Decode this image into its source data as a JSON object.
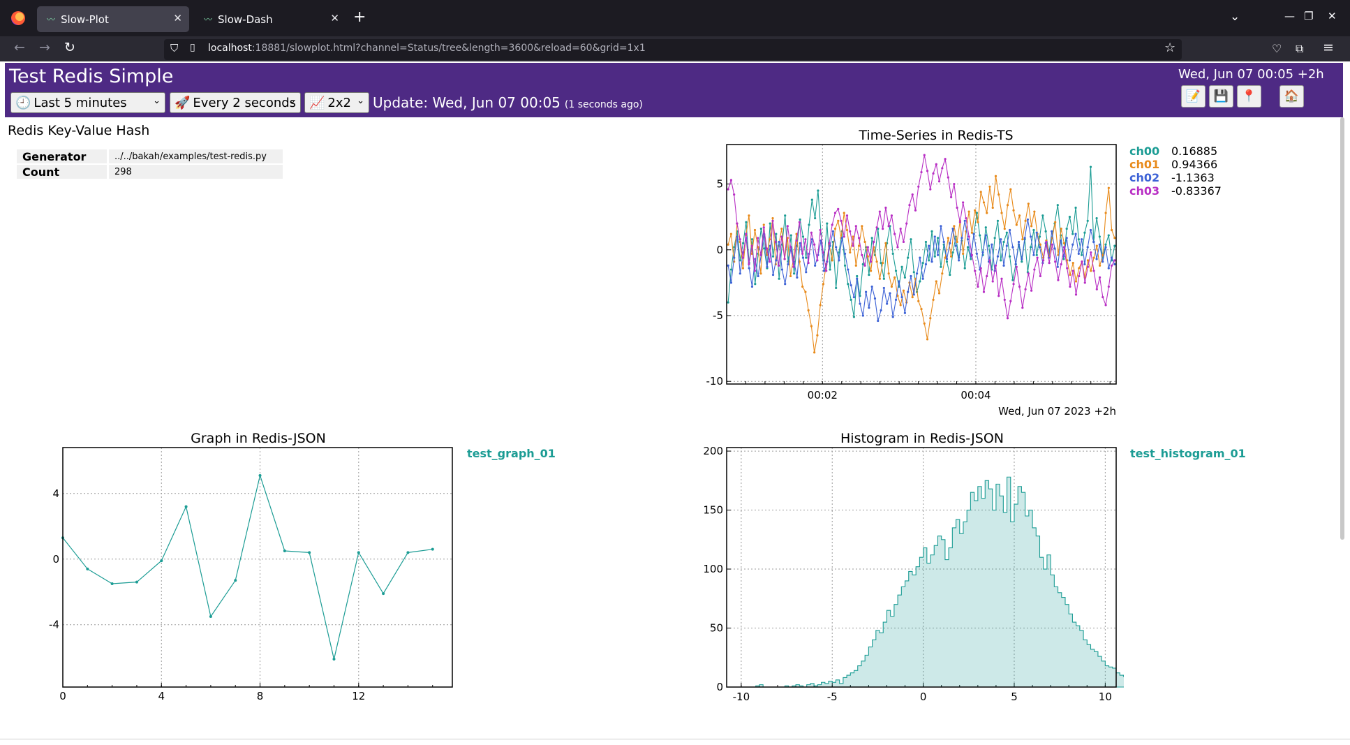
{
  "browser": {
    "tabs": [
      {
        "label": "Slow-Plot",
        "icon": "slowdash-icon"
      },
      {
        "label": "Slow-Dash",
        "icon": "slowdash-icon"
      }
    ],
    "url_host": "localhost",
    "url_rest": ":18881/slowplot.html?channel=Status/tree&length=3600&reload=60&grid=1x1"
  },
  "header": {
    "title": "Test Redis Simple",
    "clock": "Wed, Jun 07 00:05 +2h",
    "time_range": "Last 5 minutes",
    "reload": "Every 2 seconds",
    "grid": "2x2",
    "update": "Update: Wed, Jun 07 00:05",
    "update_ago": "(1 seconds ago)",
    "colors": {
      "header_bg": "#4e2a84"
    }
  },
  "kv_panel": {
    "title": "Redis Key-Value Hash",
    "rows": [
      {
        "key": "Generator",
        "value": "../../bakah/examples/test-redis.py"
      },
      {
        "key": "Count",
        "value": "298"
      }
    ]
  },
  "chart_data": [
    {
      "id": "ts",
      "type": "line",
      "title": "Time-Series in Redis-TS",
      "xlabel": "Wed, Jun 07 2023 +2h",
      "x_ticks": [
        "00:02",
        "00:04"
      ],
      "x_range_min": [
        0.75,
        5.83
      ],
      "ylim": [
        -10.2,
        8.0
      ],
      "y_ticks": [
        5,
        0,
        -5,
        -10
      ],
      "grid": true,
      "legend": "right",
      "series": [
        {
          "name": "ch00",
          "value_label": "0.16885",
          "color": "#1b9c94",
          "values": [
            -4.0,
            -1.5,
            0.2,
            1.4,
            -0.8,
            0.5,
            2.1,
            -1.0,
            0.8,
            -2.6,
            -0.3,
            1.6,
            0.1,
            -1.4,
            2.0,
            -0.5,
            1.2,
            -2.2,
            0.4,
            2.6,
            -0.9,
            1.1,
            -1.8,
            0.3,
            2.3,
            1.0,
            -0.6,
            1.9,
            3.8,
            2.4,
            4.5,
            1.2,
            -0.8,
            2.0,
            -1.5,
            0.6,
            -2.9,
            -0.2,
            1.4,
            -1.2,
            -2.6,
            -3.8,
            -5.1,
            -2.0,
            -3.5,
            -1.1,
            0.2,
            -1.9,
            0.9,
            -0.4,
            1.6,
            -1.0,
            -2.2,
            0.5,
            1.8,
            -0.3,
            -1.6,
            -2.8,
            -1.3,
            -2.1,
            -0.6,
            0.8,
            -1.7,
            -3.2,
            -2.4,
            -1.0,
            0.6,
            -0.8,
            1.4,
            -0.5,
            0.9,
            -1.3,
            0.4,
            -0.9,
            -1.9,
            -0.2,
            1.0,
            -0.6,
            0.7,
            -1.4,
            0.2,
            -0.7,
            1.2,
            2.8,
            1.1,
            -0.4,
            1.7,
            0.3,
            -1.5,
            0.9,
            2.2,
            -0.8,
            0.6,
            1.3,
            -0.5,
            -2.3,
            -1.1,
            0.4,
            -0.9,
            0.8,
            -1.7,
            0.2,
            1.5,
            -0.4,
            1.0,
            2.6,
            1.4,
            -0.2,
            0.9,
            2.0,
            3.4,
            1.1,
            -0.7,
            1.6,
            2.5,
            1.2,
            3.2,
            0.8,
            -0.4,
            1.3,
            2.2,
            6.3,
            0.6,
            2.4,
            1.0,
            -0.6,
            0.4,
            1.1,
            -0.8,
            0.3
          ]
        },
        {
          "name": "ch01",
          "value_label": "0.94366",
          "color": "#e88a1a",
          "values": [
            0.4,
            1.2,
            -0.9,
            2.0,
            0.6,
            -1.4,
            1.1,
            2.6,
            -0.3,
            1.5,
            0.2,
            -1.8,
            1.9,
            -0.4,
            0.8,
            2.4,
            -1.1,
            0.3,
            1.6,
            -0.7,
            0.9,
            -2.0,
            -0.6,
            1.2,
            -0.9,
            -2.8,
            -3.2,
            -4.6,
            -5.8,
            -7.8,
            -6.5,
            -4.2,
            -2.6,
            -1.1,
            0.4,
            -0.8,
            1.6,
            2.2,
            0.9,
            2.8,
            1.5,
            -0.2,
            1.0,
            -1.2,
            0.3,
            1.8,
            0.6,
            -0.5,
            -1.6,
            0.2,
            -0.9,
            -2.2,
            -1.0,
            0.5,
            -1.8,
            -2.8,
            -2.1,
            -3.5,
            -4.2,
            -3.1,
            -4.0,
            -2.5,
            -3.6,
            -2.2,
            -3.9,
            -4.5,
            -5.6,
            -6.8,
            -5.2,
            -3.8,
            -2.4,
            -3.3,
            -1.8,
            -0.6,
            0.9,
            -0.5,
            1.8,
            0.6,
            2.2,
            -0.3,
            1.4,
            2.9,
            1.3,
            3.0,
            2.1,
            4.4,
            3.6,
            2.8,
            4.8,
            3.2,
            5.6,
            4.2,
            2.8,
            1.6,
            3.4,
            4.6,
            3.0,
            1.9,
            2.6,
            0.8,
            2.2,
            3.5,
            1.8,
            2.9,
            1.2,
            0.4,
            -0.6,
            0.7,
            -0.5,
            0.9,
            2.1,
            -0.4,
            1.6,
            0.5,
            -0.8,
            -1.9,
            -1.0,
            -2.4,
            -1.4,
            -0.9,
            -2.1,
            -0.8,
            -1.6,
            -0.6,
            0.3,
            -1.2,
            -0.4,
            2.8,
            4.7,
            1.5,
            0.9
          ]
        },
        {
          "name": "ch02",
          "value_label": "-1.1363",
          "color": "#3d62d6",
          "values": [
            -1.2,
            -2.5,
            -0.6,
            1.0,
            -1.8,
            -0.2,
            0.9,
            -1.4,
            -2.8,
            -0.7,
            -2.0,
            -0.4,
            1.2,
            -1.3,
            0.3,
            -1.9,
            -0.8,
            0.6,
            -1.5,
            -2.6,
            -1.1,
            0.2,
            -0.9,
            -2.1,
            0.5,
            -0.6,
            -1.7,
            -0.3,
            0.8,
            -1.2,
            -0.4,
            0.7,
            -1.6,
            -0.9,
            0.3,
            1.4,
            0.2,
            -0.8,
            0.9,
            -0.3,
            -1.5,
            -2.7,
            -3.6,
            -2.2,
            -4.1,
            -5.0,
            -3.2,
            -4.4,
            -2.8,
            -3.7,
            -5.4,
            -4.6,
            -2.9,
            -4.1,
            -3.3,
            -5.1,
            -3.8,
            -2.4,
            -3.6,
            -4.8,
            -3.2,
            -2.0,
            -3.4,
            -1.8,
            -0.6,
            -2.2,
            -1.1,
            0.3,
            -0.9,
            1.0,
            -0.4,
            1.8,
            0.6,
            -0.7,
            0.5,
            1.6,
            0.3,
            -0.8,
            0.9,
            2.2,
            0.8,
            -0.5,
            1.2,
            -0.3,
            -1.5,
            -0.2,
            1.1,
            -0.9,
            0.4,
            -1.6,
            -0.5,
            0.8,
            -1.2,
            0.3,
            1.5,
            0.2,
            -1.1,
            0.6,
            -0.7,
            0.9,
            2.3,
            1.0,
            -0.4,
            1.3,
            0.2,
            -1.0,
            0.5,
            -0.6,
            1.4,
            0.1,
            -1.3,
            0.7,
            -0.5,
            0.9,
            -0.8,
            0.4,
            1.2,
            -0.3,
            0.8,
            -1.1,
            0.2,
            1.5,
            0.6,
            -0.7,
            0.4,
            -0.9,
            0.2,
            -1.4,
            -0.6,
            -1.1
          ]
        },
        {
          "name": "ch03",
          "value_label": "-0.83367",
          "color": "#b82ec4",
          "values": [
            4.6,
            5.3,
            4.2,
            2.0,
            0.8,
            -0.6,
            1.2,
            -1.1,
            0.3,
            -1.6,
            0.9,
            -0.4,
            1.7,
            0.1,
            -0.9,
            2.2,
            0.6,
            -1.2,
            1.0,
            -0.7,
            1.8,
            0.2,
            -1.3,
            0.7,
            2.1,
            -0.3,
            0.8,
            -1.0,
            1.3,
            0.4,
            -0.8,
            1.5,
            -0.2,
            -1.6,
            0.5,
            1.9,
            2.8,
            3.1,
            2.2,
            1.0,
            2.6,
            1.4,
            0.3,
            1.8,
            0.9,
            -0.4,
            -1.2,
            0.2,
            -0.9,
            0.6,
            1.7,
            2.9,
            1.6,
            3.2,
            1.8,
            2.6,
            1.2,
            0.2,
            1.6,
            0.6,
            2.0,
            3.4,
            4.2,
            3.0,
            4.8,
            5.9,
            7.2,
            6.0,
            4.6,
            5.8,
            6.5,
            5.2,
            6.2,
            6.9,
            5.5,
            4.0,
            5.0,
            3.2,
            2.1,
            3.6,
            2.4,
            1.0,
            -0.4,
            -1.6,
            -2.8,
            -1.4,
            -3.2,
            -2.0,
            -0.8,
            -2.4,
            -1.2,
            -3.5,
            -2.2,
            -3.8,
            -5.2,
            -3.9,
            -2.6,
            -1.3,
            -2.8,
            -4.4,
            -3.0,
            -1.8,
            -3.1,
            -1.5,
            -0.6,
            -2.0,
            -0.8,
            0.6,
            -1.0,
            0.4,
            -0.9,
            -2.3,
            -1.1,
            0.2,
            -1.4,
            -2.8,
            -1.6,
            -3.4,
            -2.0,
            -0.9,
            -2.5,
            -1.3,
            -0.2,
            -1.6,
            -3.0,
            -2.1,
            -3.6,
            -4.2,
            -2.8,
            -1.2,
            -0.8
          ]
        }
      ]
    },
    {
      "id": "graph",
      "type": "line",
      "title": "Graph in Redis-JSON",
      "legend_name": "test_graph_01",
      "color": "#1b9c94",
      "xlim": [
        0,
        15.8
      ],
      "ylim": [
        -7.8,
        6.8
      ],
      "x_ticks": [
        0,
        4,
        8,
        12
      ],
      "y_ticks": [
        4,
        0,
        -4
      ],
      "grid": true,
      "legend": "right",
      "x": [
        0,
        1,
        2,
        3,
        4,
        5,
        6,
        7,
        8,
        9,
        10,
        11,
        12,
        13,
        14,
        15
      ],
      "values": [
        1.3,
        -0.6,
        -1.5,
        -1.4,
        -0.1,
        3.2,
        -3.5,
        -1.3,
        5.1,
        0.5,
        0.4,
        -6.1,
        0.4,
        -2.1,
        0.4,
        0.6
      ]
    },
    {
      "id": "hist",
      "type": "bar",
      "title": "Histogram in Redis-JSON",
      "legend_name": "test_histogram_01",
      "color": "#1b9c94",
      "xlim": [
        -10.8,
        10.6
      ],
      "ylim": [
        0,
        203
      ],
      "x_ticks": [
        -10,
        -5,
        0,
        5,
        10
      ],
      "y_ticks": [
        200,
        150,
        100,
        50,
        0
      ],
      "grid": true,
      "legend": "right",
      "bin_start": -10,
      "bin_width": 0.2,
      "values": [
        0,
        0,
        0,
        0,
        1,
        2,
        0,
        0,
        0,
        0,
        0,
        0,
        1,
        0,
        1,
        2,
        1,
        0,
        2,
        3,
        1,
        2,
        4,
        3,
        5,
        4,
        6,
        3,
        8,
        10,
        12,
        14,
        18,
        22,
        27,
        34,
        40,
        48,
        46,
        55,
        65,
        60,
        70,
        78,
        85,
        90,
        98,
        95,
        102,
        110,
        118,
        105,
        112,
        120,
        128,
        125,
        108,
        118,
        135,
        142,
        130,
        140,
        150,
        165,
        158,
        170,
        160,
        175,
        168,
        150,
        172,
        162,
        148,
        178,
        140,
        155,
        170,
        165,
        145,
        150,
        135,
        128,
        110,
        100,
        112,
        95,
        85,
        80,
        76,
        70,
        62,
        55,
        52,
        48,
        40,
        36,
        32,
        30,
        26,
        22,
        18,
        17,
        16,
        12,
        10,
        9,
        8,
        6,
        4,
        5,
        3,
        2,
        1,
        1,
        2,
        1,
        0,
        0,
        0,
        0
      ]
    }
  ]
}
